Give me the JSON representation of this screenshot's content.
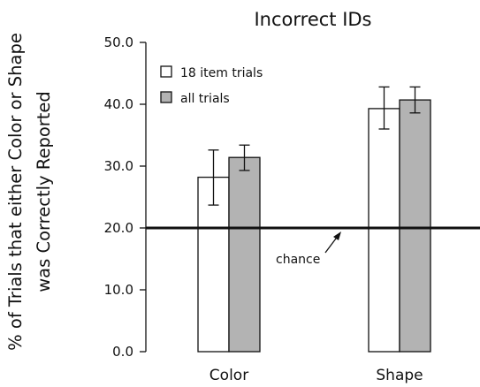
{
  "chart_data": {
    "type": "bar",
    "title": "Incorrect IDs",
    "ylabel": "% of Trials that either Color or Shape was Correctly Reported",
    "ylabel_lines": [
      "% of Trials that either Color or Shape",
      "was Correctly Reported"
    ],
    "xlabel": "",
    "ylim": [
      0,
      50
    ],
    "yticks": [
      0,
      10,
      20,
      30,
      40,
      50
    ],
    "ytick_labels": [
      "0.0",
      "10.0",
      "20.0",
      "30.0",
      "40.0",
      "50.0"
    ],
    "categories": [
      "Color",
      "Shape"
    ],
    "series": [
      {
        "name": "18 item trials",
        "color": "#ffffff",
        "values": [
          28.2,
          39.3
        ],
        "err_low": [
          23.7,
          36.0
        ],
        "err_high": [
          32.6,
          42.8
        ]
      },
      {
        "name": "all trials",
        "color": "#b3b3b3",
        "values": [
          31.4,
          40.7
        ],
        "err_low": [
          29.3,
          38.6
        ],
        "err_high": [
          33.4,
          42.8
        ]
      }
    ],
    "reference_line": {
      "value": 20,
      "label": "chance"
    },
    "legend_position": "top-left",
    "grid": false
  }
}
